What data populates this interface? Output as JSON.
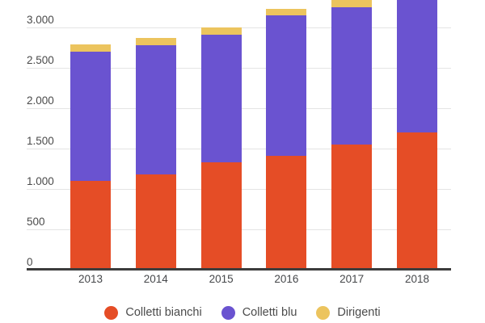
{
  "chart_data": {
    "type": "bar",
    "stacked": true,
    "categories": [
      "2013",
      "2014",
      "2015",
      "2016",
      "2017",
      "2018"
    ],
    "series": [
      {
        "name": "Colletti bianchi",
        "color": "#e54d26",
        "values": [
          1100,
          1180,
          1330,
          1415,
          1550,
          1705
        ]
      },
      {
        "name": "Colletti blu",
        "color": "#6a53d0",
        "values": [
          1600,
          1600,
          1585,
          1735,
          1700,
          1755
        ]
      },
      {
        "name": "Dirigenti",
        "color": "#ecc45e",
        "values": [
          90,
          90,
          85,
          85,
          90,
          90
        ]
      }
    ],
    "y_ticks": [
      {
        "value": 3000,
        "label": "3.000"
      },
      {
        "value": 2500,
        "label": "2.500"
      },
      {
        "value": 2000,
        "label": "2.000"
      },
      {
        "value": 1500,
        "label": "1.500"
      },
      {
        "value": 1000,
        "label": "1.000"
      },
      {
        "value": 500,
        "label": "500"
      },
      {
        "value": 0,
        "label": "0"
      }
    ],
    "ylim_visible": [
      0,
      3350
    ],
    "grid": true,
    "legend_position": "bottom",
    "top_cropped": true
  },
  "colors": {
    "axis_line": "#3c3c3c",
    "gridline": "#e4e4e4",
    "tick_text": "#4a4a4a",
    "legend_text": "#4b4b4b"
  }
}
